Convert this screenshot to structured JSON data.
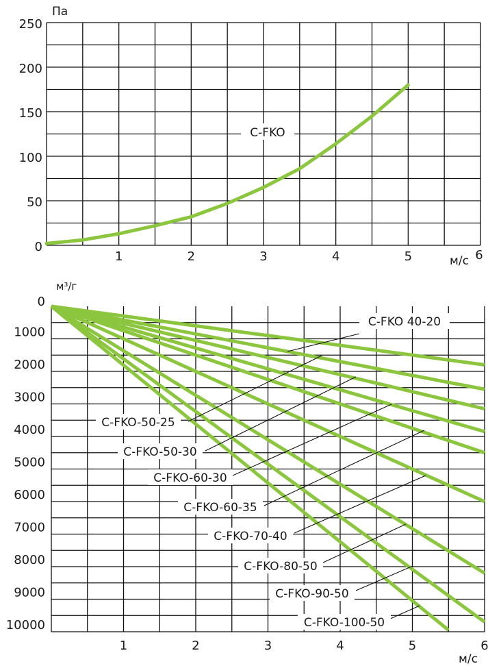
{
  "chart_data": [
    {
      "type": "line",
      "ylabel": "Па",
      "xlabel": "м/с",
      "xlim": [
        0,
        6
      ],
      "ylim": [
        0,
        250
      ],
      "x_ticks": [
        1,
        2,
        3,
        4,
        5,
        6
      ],
      "y_ticks": [
        0,
        50,
        100,
        150,
        200,
        250
      ],
      "grid": true,
      "line_color": "#8cc63f",
      "series": [
        {
          "name": "C-FKO",
          "x": [
            0,
            0.5,
            1,
            1.5,
            2,
            2.5,
            3,
            3.5,
            4,
            4.5,
            5
          ],
          "y": [
            2,
            6,
            13,
            22,
            32,
            47,
            65,
            86,
            114,
            145,
            180
          ]
        }
      ]
    },
    {
      "type": "line",
      "ylabel": "м³/г",
      "xlabel": "м/с",
      "xlim": [
        0,
        6
      ],
      "ylim": [
        0,
        10000
      ],
      "y_inverted": true,
      "x_ticks": [
        1,
        2,
        3,
        4,
        5,
        6
      ],
      "y_ticks": [
        0,
        1000,
        2000,
        3000,
        4000,
        5000,
        6000,
        7000,
        8000,
        9000,
        10000
      ],
      "grid": true,
      "line_color": "#8cc63f",
      "series": [
        {
          "name": "C-FKO 40-20",
          "x": [
            0,
            6
          ],
          "y": [
            0,
            1800
          ]
        },
        {
          "name": "C-FKO-50-25",
          "x": [
            0,
            6
          ],
          "y": [
            0,
            2550
          ]
        },
        {
          "name": "C-FKO-50-30",
          "x": [
            0,
            6
          ],
          "y": [
            0,
            3150
          ]
        },
        {
          "name": "C-FKO-60-30",
          "x": [
            0,
            6
          ],
          "y": [
            0,
            3850
          ]
        },
        {
          "name": "C-FKO-60-35",
          "x": [
            0,
            6
          ],
          "y": [
            0,
            4500
          ]
        },
        {
          "name": "C-FKO-70-40",
          "x": [
            0,
            6
          ],
          "y": [
            0,
            6000
          ]
        },
        {
          "name": "C-FKO-80-50",
          "x": [
            0,
            6
          ],
          "y": [
            0,
            8200
          ]
        },
        {
          "name": "C-FKO-90-50",
          "x": [
            0,
            6
          ],
          "y": [
            0,
            9700
          ]
        },
        {
          "name": "C-FKO-100-50",
          "x": [
            0,
            5.5
          ],
          "y": [
            0,
            9950
          ]
        }
      ]
    }
  ]
}
